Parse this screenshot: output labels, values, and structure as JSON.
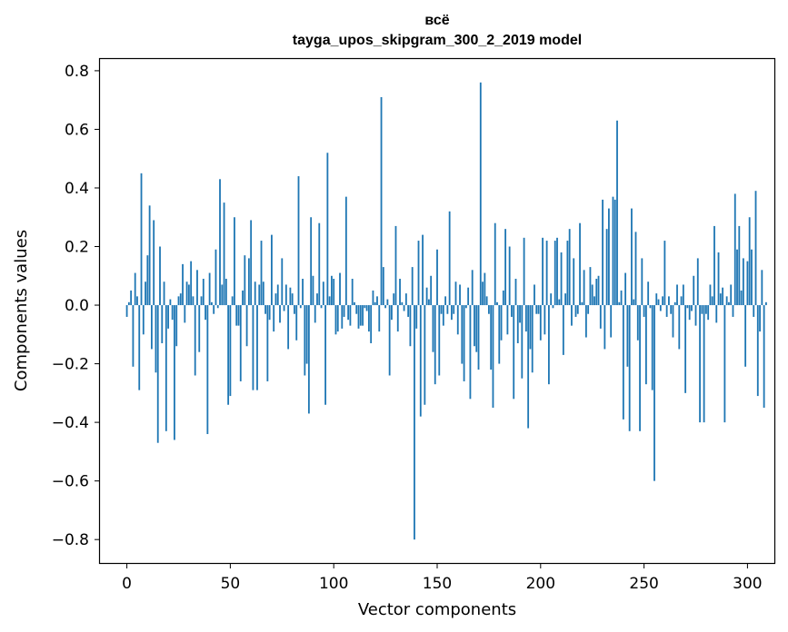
{
  "chart_data": {
    "type": "bar",
    "title": "всё",
    "subtitle": "tayga_upos_skipgram_300_2_2019 model",
    "xlabel": "Vector components",
    "ylabel": "Components values",
    "xlim": [
      -13,
      313
    ],
    "ylim": [
      -0.88,
      0.84
    ],
    "xticks": [
      0,
      50,
      100,
      150,
      200,
      250,
      300
    ],
    "yticks": [
      -0.8,
      -0.6,
      -0.4,
      -0.2,
      0.0,
      0.2,
      0.4,
      0.6,
      0.8
    ],
    "ytick_labels": [
      "−0.8",
      "−0.6",
      "−0.4",
      "−0.2",
      "0.0",
      "0.2",
      "0.4",
      "0.6",
      "0.8"
    ],
    "bar_color": "#1f77b4",
    "grid": false,
    "values": [
      -0.04,
      0.01,
      0.05,
      -0.21,
      0.11,
      0.03,
      -0.29,
      0.45,
      -0.1,
      0.08,
      0.17,
      0.34,
      -0.15,
      0.29,
      -0.23,
      -0.47,
      0.2,
      -0.13,
      0.08,
      -0.43,
      -0.08,
      0.02,
      -0.05,
      -0.46,
      -0.14,
      0.03,
      0.04,
      0.14,
      -0.06,
      0.08,
      0.07,
      0.15,
      0.03,
      -0.24,
      0.12,
      -0.16,
      0.03,
      0.09,
      -0.05,
      -0.44,
      0.11,
      0.01,
      -0.03,
      0.19,
      -0.01,
      0.43,
      0.07,
      0.35,
      0.09,
      -0.34,
      -0.31,
      0.03,
      0.3,
      -0.07,
      -0.07,
      -0.26,
      0.05,
      0.17,
      -0.14,
      0.16,
      0.29,
      -0.29,
      0.08,
      -0.29,
      0.07,
      0.22,
      0.08,
      -0.03,
      -0.26,
      -0.05,
      0.24,
      -0.09,
      0.04,
      0.07,
      -0.06,
      0.16,
      -0.02,
      0.07,
      -0.15,
      0.06,
      0.04,
      -0.03,
      -0.12,
      0.44,
      -0.01,
      0.09,
      -0.24,
      -0.2,
      -0.37,
      0.3,
      0.1,
      -0.06,
      0.04,
      0.28,
      -0.01,
      0.08,
      -0.34,
      0.52,
      0.03,
      0.1,
      0.09,
      -0.1,
      -0.09,
      0.11,
      -0.08,
      -0.04,
      0.37,
      -0.05,
      -0.07,
      0.09,
      0.01,
      -0.03,
      -0.08,
      -0.07,
      -0.07,
      -0.01,
      -0.02,
      -0.09,
      -0.13,
      0.05,
      0.01,
      0.03,
      -0.09,
      0.71,
      0.13,
      -0.01,
      0.02,
      -0.24,
      -0.05,
      0.04,
      0.27,
      -0.09,
      0.09,
      0.01,
      -0.02,
      0.04,
      -0.04,
      -0.14,
      0.13,
      -0.8,
      -0.08,
      0.22,
      -0.38,
      0.24,
      -0.34,
      0.06,
      0.02,
      0.1,
      -0.16,
      -0.27,
      0.19,
      -0.24,
      -0.03,
      -0.07,
      0.03,
      -0.03,
      0.32,
      -0.05,
      -0.03,
      0.08,
      -0.1,
      0.07,
      -0.2,
      -0.26,
      -0.01,
      0.06,
      -0.32,
      0.12,
      -0.14,
      -0.16,
      -0.22,
      0.76,
      0.08,
      0.11,
      0.03,
      -0.03,
      -0.22,
      -0.35,
      0.28,
      0.01,
      -0.2,
      -0.12,
      0.05,
      0.26,
      -0.1,
      0.2,
      -0.04,
      -0.32,
      0.09,
      -0.13,
      -0.06,
      -0.25,
      0.23,
      -0.09,
      -0.42,
      -0.15,
      -0.23,
      0.07,
      -0.03,
      -0.03,
      -0.12,
      0.23,
      -0.1,
      0.22,
      -0.27,
      0.04,
      -0.01,
      0.22,
      0.23,
      0.02,
      0.18,
      -0.17,
      0.04,
      0.22,
      0.26,
      -0.07,
      0.16,
      -0.04,
      -0.03,
      0.28,
      0.01,
      0.12,
      -0.11,
      -0.03,
      0.13,
      0.07,
      0.03,
      0.09,
      0.1,
      -0.08,
      0.36,
      -0.15,
      0.26,
      0.33,
      -0.11,
      0.37,
      0.36,
      0.63,
      0.01,
      0.05,
      -0.39,
      0.11,
      -0.21,
      -0.43,
      0.33,
      0.02,
      0.25,
      -0.12,
      -0.43,
      0.16,
      -0.04,
      -0.27,
      0.08,
      -0.01,
      -0.29,
      -0.6,
      0.04,
      0.02,
      -0.02,
      0.03,
      0.22,
      -0.04,
      0.03,
      -0.03,
      -0.11,
      0.01,
      0.07,
      -0.15,
      0.03,
      0.07,
      -0.3,
      -0.01,
      -0.05,
      -0.02,
      0.1,
      -0.07,
      0.16,
      -0.4,
      -0.03,
      -0.4,
      -0.03,
      -0.05,
      0.07,
      0.03,
      0.27,
      -0.06,
      0.18,
      0.04,
      0.06,
      -0.4,
      0.03,
      0.01,
      0.07,
      -0.04,
      0.38,
      0.19,
      0.27,
      0.05,
      0.16,
      -0.21,
      0.15,
      0.3,
      0.19,
      -0.04,
      0.39,
      -0.31,
      -0.09,
      0.12,
      -0.35,
      0.01
    ]
  }
}
